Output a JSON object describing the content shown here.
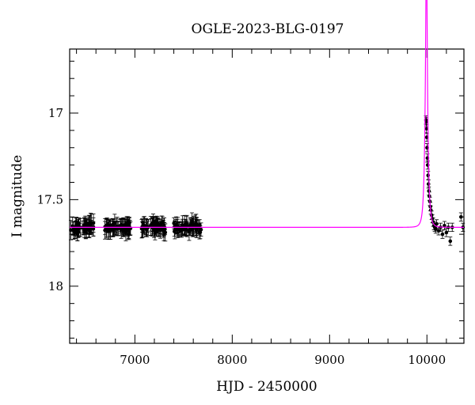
{
  "chart_data": {
    "type": "scatter",
    "title": "OGLE-2023-BLG-0197",
    "xlabel": "HJD - 2450000",
    "ylabel": "I magnitude",
    "xlim": [
      6330,
      10380
    ],
    "ylim": [
      18.33,
      16.63
    ],
    "y_inverted": true,
    "grid": false,
    "x_ticks": [
      7000,
      8000,
      9000,
      10000
    ],
    "y_ticks": [
      17,
      17.5,
      18
    ],
    "x_tick_labels": [
      "7000",
      "8000",
      "9000",
      "10000"
    ],
    "y_tick_labels": [
      "17",
      "17.5",
      "18"
    ],
    "baseline_mag": 17.66,
    "model": {
      "color": "#ff00ff",
      "t0": 9995,
      "tE": 25,
      "u0": 0.21,
      "baseline": 17.66
    },
    "observation_seasons": [
      {
        "start": 6340,
        "end": 6580
      },
      {
        "start": 6690,
        "end": 6960
      },
      {
        "start": 7060,
        "end": 7320
      },
      {
        "start": 7400,
        "end": 7680
      }
    ],
    "point_color": "#000000",
    "typical_error_mag": 0.04,
    "event_points": [
      [
        9990,
        17.04
      ],
      [
        9993,
        17.05
      ],
      [
        9996,
        17.09
      ],
      [
        9999,
        17.14
      ],
      [
        10002,
        17.2
      ],
      [
        10005,
        17.26
      ],
      [
        10008,
        17.3
      ],
      [
        10012,
        17.36
      ],
      [
        10016,
        17.41
      ],
      [
        10020,
        17.45
      ],
      [
        10025,
        17.48
      ],
      [
        10030,
        17.51
      ],
      [
        10035,
        17.54
      ],
      [
        10040,
        17.56
      ],
      [
        10048,
        17.59
      ],
      [
        10056,
        17.61
      ],
      [
        10064,
        17.63
      ],
      [
        10072,
        17.65
      ],
      [
        10080,
        17.66
      ],
      [
        10090,
        17.67
      ],
      [
        10100,
        17.64
      ],
      [
        10120,
        17.68
      ],
      [
        10140,
        17.66
      ],
      [
        10160,
        17.7
      ],
      [
        10180,
        17.65
      ],
      [
        10200,
        17.69
      ],
      [
        10220,
        17.66
      ],
      [
        10240,
        17.74
      ],
      [
        10260,
        17.66
      ],
      [
        10350,
        17.6
      ],
      [
        10370,
        17.66
      ]
    ]
  }
}
